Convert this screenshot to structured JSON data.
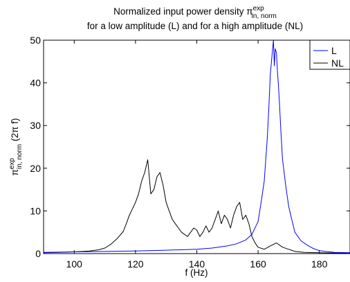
{
  "chart_data": {
    "type": "line",
    "title_line1": "Normalized input power density π",
    "title_line1_sup": "exp",
    "title_line1_sub": "in, norm",
    "title_line2": "for a low amplitude (L) and for a high amplitude (NL)",
    "xlabel": "f (Hz)",
    "ylabel_main": "π",
    "ylabel_sup": "exp",
    "ylabel_sub": "in, norm",
    "ylabel_suffix": "(2π f)",
    "xlim": [
      90,
      190
    ],
    "ylim": [
      0,
      50
    ],
    "xticks": [
      100,
      120,
      140,
      160,
      180
    ],
    "yticks": [
      0,
      10,
      20,
      30,
      40,
      50
    ],
    "grid": false,
    "legend_position": "top-right",
    "series": [
      {
        "name": "L",
        "color": "#0000ff",
        "x": [
          90,
          100,
          110,
          120,
          130,
          140,
          145,
          150,
          153,
          156,
          158,
          160,
          161,
          162,
          163,
          163.5,
          164,
          164.5,
          165,
          165.3,
          165.6,
          166,
          166.3,
          166.6,
          167,
          167.5,
          168,
          169,
          170,
          171,
          172,
          174,
          176,
          178,
          180,
          182,
          185,
          190
        ],
        "y": [
          0.3,
          0.4,
          0.5,
          0.6,
          0.8,
          1.0,
          1.3,
          1.8,
          2.3,
          3.2,
          4.5,
          7.5,
          12,
          17,
          27,
          34,
          42,
          46,
          50,
          44,
          48,
          47,
          43,
          40,
          35,
          28,
          22,
          16,
          11,
          8,
          5,
          3,
          2,
          1.2,
          0.7,
          0.5,
          0.3,
          0.2
        ]
      },
      {
        "name": "NL",
        "color": "#000000",
        "x": [
          90,
          95,
          100,
          105,
          108,
          110,
          112,
          114,
          116,
          117,
          118,
          119,
          120,
          121,
          122,
          123,
          124,
          125,
          126,
          127,
          128,
          129,
          130,
          131,
          132,
          133,
          134,
          135,
          136,
          137,
          138,
          139,
          140,
          141,
          142,
          143,
          144,
          145,
          146,
          147,
          148,
          149,
          150,
          151,
          152,
          153,
          154,
          155,
          156,
          157,
          158,
          159,
          160,
          162,
          164,
          166,
          168,
          170,
          172,
          175,
          180,
          185,
          190
        ],
        "y": [
          0.2,
          0.3,
          0.4,
          0.6,
          0.9,
          1.3,
          2.2,
          3.5,
          5.2,
          7,
          9,
          10.5,
          12,
          14,
          17,
          19,
          22,
          14,
          15,
          18,
          19,
          16,
          12,
          10,
          8,
          7,
          6,
          5,
          4.5,
          4,
          5,
          6,
          5.5,
          4,
          5,
          6.5,
          5,
          6,
          8,
          10,
          7,
          9,
          8,
          6,
          9,
          11,
          12,
          8,
          9,
          7,
          4,
          2.5,
          1.5,
          1.0,
          1.8,
          2.5,
          1.5,
          1.0,
          0.5,
          0.3,
          0.2,
          0.15,
          0.1
        ]
      }
    ]
  }
}
